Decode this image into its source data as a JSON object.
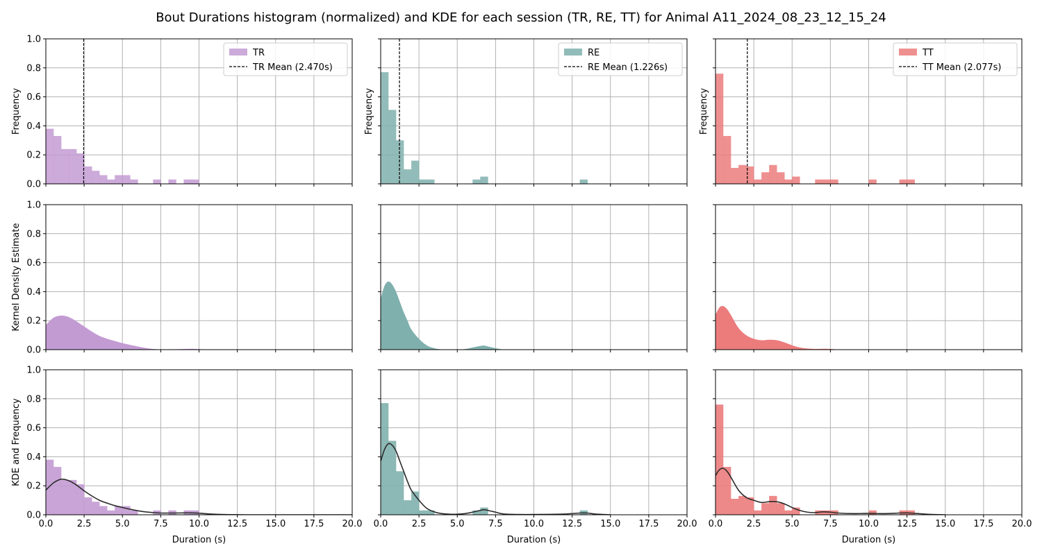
{
  "figure": {
    "title": "Bout Durations histogram (normalized) and KDE for each session (TR, RE, TT) for Animal A11_2024_08_23_12_15_24"
  },
  "colors": {
    "TR": "#c39bd3",
    "RE": "#7fb0ad",
    "TT": "#ec7c7c",
    "kde_line": "#2b2b2b",
    "mean_line": "#000000",
    "grid": "#b0b0b0"
  },
  "labels": {
    "hist_ylabel": "Frequency",
    "kde_ylabel": "Kernel Density Estimate",
    "combo_ylabel": "KDE and Frequency",
    "xlabel": "Duration (s)"
  },
  "chart_data": {
    "type": "bar",
    "xlim": [
      0,
      20
    ],
    "ylim": [
      0,
      1.0
    ],
    "xticks": [
      "0.0",
      "2.5",
      "5.0",
      "7.5",
      "10.0",
      "12.5",
      "15.0",
      "17.5",
      "20.0"
    ],
    "yticks": [
      "0.0",
      "0.2",
      "0.4",
      "0.6",
      "0.8",
      "1.0"
    ],
    "grid": true,
    "legend_position": "top-right",
    "bin_width": 0.5,
    "sessions": [
      {
        "key": "TR",
        "legend_label": "TR",
        "mean": 2.47,
        "mean_label": "TR Mean (2.470s)",
        "hist": [
          0.38,
          0.33,
          0.24,
          0.24,
          0.21,
          0.12,
          0.09,
          0.06,
          0.03,
          0.06,
          0.06,
          0.03,
          0,
          0,
          0.03,
          0,
          0.03,
          0,
          0.03,
          0.03
        ],
        "kde_x": [
          0,
          0.5,
          1,
          1.5,
          2,
          2.5,
          3,
          3.5,
          4,
          4.5,
          5,
          5.5,
          6,
          6.5,
          7,
          7.5,
          8,
          8.5,
          9,
          9.5,
          10,
          10.5,
          11,
          11.5,
          12,
          13,
          14,
          15,
          16,
          18,
          20
        ],
        "kde_y": [
          0.17,
          0.22,
          0.245,
          0.235,
          0.205,
          0.165,
          0.13,
          0.1,
          0.08,
          0.063,
          0.05,
          0.038,
          0.028,
          0.02,
          0.015,
          0.012,
          0.012,
          0.012,
          0.013,
          0.013,
          0.011,
          0.007,
          0.004,
          0.002,
          0.001,
          0,
          0,
          0,
          0,
          0,
          0
        ],
        "kde_fill_x": [
          0,
          0.5,
          1,
          1.5,
          2,
          2.5,
          3,
          3.5,
          4,
          4.5,
          5,
          5.5,
          6,
          6.5,
          7,
          7.5,
          8,
          8.5,
          9,
          9.5,
          10,
          10.5,
          11
        ],
        "kde_fill_y": [
          0.17,
          0.22,
          0.235,
          0.225,
          0.195,
          0.16,
          0.125,
          0.095,
          0.075,
          0.06,
          0.045,
          0.033,
          0.022,
          0.012,
          0.005,
          0.002,
          0.002,
          0.003,
          0.005,
          0.006,
          0.004,
          0.001,
          0
        ]
      },
      {
        "key": "RE",
        "legend_label": "RE",
        "mean": 1.226,
        "mean_label": "RE Mean (1.226s)",
        "hist": [
          0.77,
          0.51,
          0.3,
          0.1,
          0.16,
          0.03,
          0.03,
          0,
          0,
          0,
          0,
          0,
          0.03,
          0.05,
          0,
          0,
          0,
          0,
          0,
          0,
          0,
          0,
          0,
          0,
          0,
          0,
          0.03
        ],
        "kde_x": [
          0,
          0.25,
          0.5,
          0.75,
          1,
          1.25,
          1.5,
          1.75,
          2,
          2.5,
          3,
          3.5,
          4,
          4.5,
          5,
          5.5,
          6,
          6.5,
          6.75,
          7,
          7.5,
          8,
          9,
          10,
          11,
          12,
          13,
          13.5,
          14,
          15
        ],
        "kde_y": [
          0.37,
          0.45,
          0.49,
          0.48,
          0.44,
          0.37,
          0.3,
          0.23,
          0.17,
          0.1,
          0.045,
          0.02,
          0.008,
          0.004,
          0.004,
          0.008,
          0.018,
          0.03,
          0.035,
          0.03,
          0.018,
          0.006,
          0.002,
          0.002,
          0.003,
          0.005,
          0.012,
          0.012,
          0.005,
          0
        ],
        "kde_fill_x": [
          0,
          0.25,
          0.5,
          0.75,
          1,
          1.25,
          1.5,
          1.75,
          2,
          2.5,
          3,
          3.5,
          4,
          5,
          5.5,
          6,
          6.5,
          6.75,
          7,
          7.5,
          8
        ],
        "kde_fill_y": [
          0.35,
          0.44,
          0.47,
          0.45,
          0.4,
          0.33,
          0.26,
          0.2,
          0.14,
          0.075,
          0.03,
          0.01,
          0.002,
          0,
          0.004,
          0.015,
          0.025,
          0.028,
          0.022,
          0.01,
          0
        ]
      },
      {
        "key": "TT",
        "legend_label": "TT",
        "mean": 2.077,
        "mean_label": "TT Mean (2.077s)",
        "hist": [
          0.76,
          0.33,
          0.11,
          0.13,
          0.12,
          0.03,
          0.08,
          0.13,
          0.08,
          0.03,
          0.05,
          0,
          0,
          0.03,
          0.03,
          0.03,
          0,
          0,
          0,
          0,
          0.03,
          0,
          0,
          0,
          0.03,
          0.03
        ],
        "kde_x": [
          0,
          0.25,
          0.5,
          0.75,
          1,
          1.5,
          2,
          2.5,
          3,
          3.5,
          4,
          4.5,
          5,
          5.5,
          6,
          6.5,
          7,
          7.5,
          8,
          9,
          10,
          11,
          12,
          12.5,
          13,
          14,
          15
        ],
        "kde_y": [
          0.27,
          0.31,
          0.32,
          0.3,
          0.26,
          0.17,
          0.12,
          0.1,
          0.085,
          0.09,
          0.09,
          0.075,
          0.05,
          0.03,
          0.018,
          0.015,
          0.02,
          0.018,
          0.012,
          0.008,
          0.01,
          0.008,
          0.012,
          0.013,
          0.01,
          0.003,
          0
        ],
        "kde_fill_x": [
          0,
          0.25,
          0.5,
          0.75,
          1,
          1.5,
          2,
          2.5,
          3,
          3.5,
          4,
          4.5,
          5,
          5.5,
          6,
          6.5,
          7,
          7.5,
          8,
          9
        ],
        "kde_fill_y": [
          0.24,
          0.29,
          0.3,
          0.28,
          0.24,
          0.15,
          0.1,
          0.075,
          0.065,
          0.068,
          0.065,
          0.05,
          0.03,
          0.015,
          0.008,
          0.005,
          0.006,
          0.005,
          0.002,
          0
        ]
      }
    ]
  }
}
